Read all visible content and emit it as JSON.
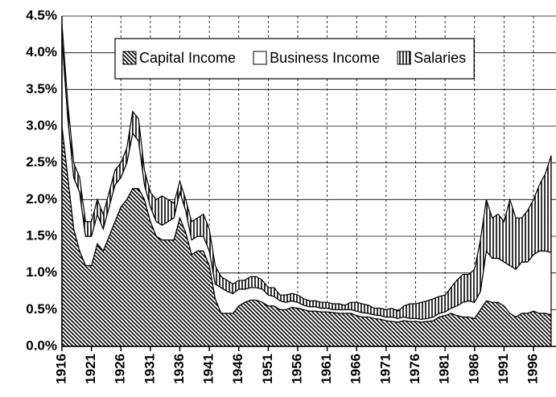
{
  "chart_data": {
    "type": "stacked-area",
    "x": [
      1916,
      1917,
      1918,
      1919,
      1920,
      1921,
      1922,
      1923,
      1924,
      1925,
      1926,
      1927,
      1928,
      1929,
      1930,
      1931,
      1932,
      1933,
      1934,
      1935,
      1936,
      1937,
      1938,
      1939,
      1940,
      1941,
      1942,
      1943,
      1944,
      1945,
      1946,
      1947,
      1948,
      1949,
      1950,
      1951,
      1952,
      1953,
      1954,
      1955,
      1956,
      1957,
      1958,
      1959,
      1960,
      1961,
      1962,
      1963,
      1964,
      1965,
      1966,
      1967,
      1968,
      1969,
      1970,
      1971,
      1972,
      1973,
      1974,
      1975,
      1976,
      1977,
      1978,
      1979,
      1980,
      1981,
      1982,
      1983,
      1984,
      1985,
      1986,
      1987,
      1988,
      1989,
      1990,
      1991,
      1992,
      1993,
      1994,
      1995,
      1996,
      1997,
      1998,
      1999
    ],
    "series": [
      {
        "name": "Capital Income",
        "color": "#000000",
        "pattern": "diagonal",
        "values": [
          3.0,
          2.3,
          1.6,
          1.3,
          1.1,
          1.1,
          1.4,
          1.3,
          1.5,
          1.7,
          1.9,
          2.0,
          2.15,
          2.15,
          2.0,
          1.7,
          1.5,
          1.45,
          1.45,
          1.45,
          1.75,
          1.55,
          1.25,
          1.3,
          1.3,
          1.1,
          0.65,
          0.45,
          0.45,
          0.45,
          0.55,
          0.6,
          0.63,
          0.63,
          0.6,
          0.55,
          0.55,
          0.5,
          0.5,
          0.53,
          0.52,
          0.5,
          0.48,
          0.48,
          0.47,
          0.47,
          0.46,
          0.45,
          0.45,
          0.45,
          0.42,
          0.4,
          0.4,
          0.38,
          0.37,
          0.35,
          0.34,
          0.33,
          0.35,
          0.34,
          0.34,
          0.33,
          0.34,
          0.35,
          0.4,
          0.42,
          0.45,
          0.42,
          0.4,
          0.4,
          0.38,
          0.5,
          0.62,
          0.6,
          0.6,
          0.55,
          0.45,
          0.4,
          0.45,
          0.45,
          0.48,
          0.45,
          0.45,
          0.43
        ]
      },
      {
        "name": "Business Income",
        "color": "#ffffff",
        "pattern": "none",
        "values": [
          1.2,
          0.8,
          0.7,
          0.8,
          0.4,
          0.4,
          0.4,
          0.3,
          0.4,
          0.5,
          0.4,
          0.5,
          0.75,
          0.65,
          0.2,
          0.2,
          0.2,
          0.2,
          0.25,
          0.3,
          0.35,
          0.3,
          0.2,
          0.2,
          0.2,
          0.2,
          0.2,
          0.35,
          0.3,
          0.27,
          0.23,
          0.18,
          0.17,
          0.17,
          0.18,
          0.15,
          0.13,
          0.12,
          0.1,
          0.09,
          0.08,
          0.06,
          0.06,
          0.06,
          0.05,
          0.05,
          0.04,
          0.05,
          0.05,
          0.05,
          0.06,
          0.06,
          0.05,
          0.05,
          0.05,
          0.05,
          0.06,
          0.05,
          0.05,
          0.04,
          0.04,
          0.04,
          0.04,
          0.05,
          0.05,
          0.05,
          0.07,
          0.13,
          0.2,
          0.22,
          0.22,
          0.25,
          0.68,
          0.6,
          0.6,
          0.6,
          0.65,
          0.65,
          0.7,
          0.7,
          0.77,
          0.85,
          0.85,
          0.85
        ]
      },
      {
        "name": "Salaries",
        "color": "#000000",
        "pattern": "vertical",
        "values": [
          0.2,
          0.2,
          0.2,
          0.2,
          0.2,
          0.2,
          0.2,
          0.2,
          0.2,
          0.2,
          0.2,
          0.2,
          0.3,
          0.3,
          0.2,
          0.2,
          0.3,
          0.4,
          0.3,
          0.2,
          0.15,
          0.15,
          0.25,
          0.25,
          0.3,
          0.3,
          0.25,
          0.15,
          0.15,
          0.13,
          0.12,
          0.12,
          0.15,
          0.15,
          0.12,
          0.1,
          0.12,
          0.08,
          0.1,
          0.1,
          0.1,
          0.09,
          0.08,
          0.08,
          0.08,
          0.08,
          0.08,
          0.08,
          0.06,
          0.1,
          0.12,
          0.12,
          0.11,
          0.09,
          0.1,
          0.1,
          0.12,
          0.1,
          0.15,
          0.2,
          0.2,
          0.23,
          0.24,
          0.25,
          0.23,
          0.23,
          0.28,
          0.35,
          0.38,
          0.36,
          0.45,
          0.7,
          0.7,
          0.55,
          0.6,
          0.55,
          0.9,
          0.7,
          0.6,
          0.7,
          0.75,
          0.9,
          1.05,
          1.32
        ]
      }
    ],
    "xlim": [
      1916,
      1999
    ],
    "xticks": [
      1916,
      1921,
      1926,
      1931,
      1936,
      1941,
      1946,
      1951,
      1956,
      1961,
      1966,
      1971,
      1976,
      1981,
      1986,
      1991,
      1996
    ],
    "ylim": [
      0,
      4.5
    ],
    "yticks": [
      {
        "value": 0,
        "label": "0.0%"
      },
      {
        "value": 0.5,
        "label": "0.5%"
      },
      {
        "value": 1,
        "label": "1.0%"
      },
      {
        "value": 1.5,
        "label": "1.5%"
      },
      {
        "value": 2,
        "label": "2.0%"
      },
      {
        "value": 2.5,
        "label": "2.5%"
      },
      {
        "value": 3,
        "label": "3.0%"
      },
      {
        "value": 3.5,
        "label": "3.5%"
      },
      {
        "value": 4,
        "label": "4.0%"
      },
      {
        "value": 4.5,
        "label": "4.5%"
      }
    ],
    "grid": true,
    "legend": "top"
  }
}
